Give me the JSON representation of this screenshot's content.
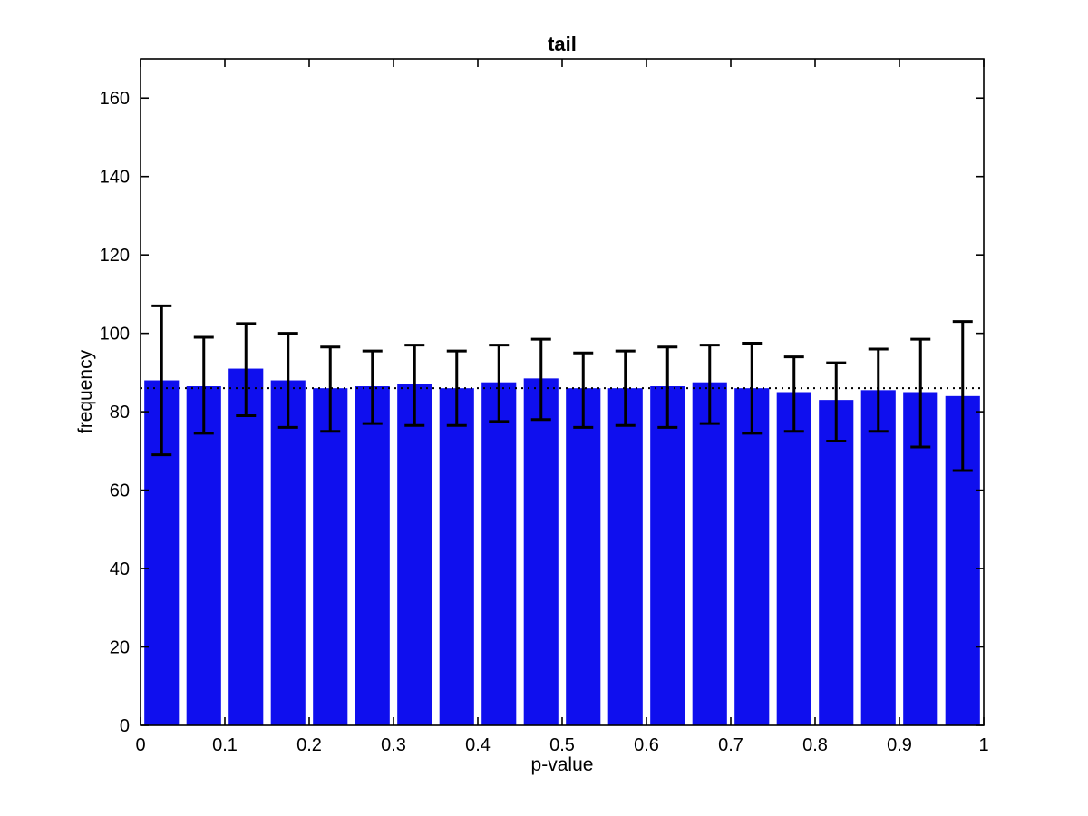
{
  "chart_data": {
    "type": "bar",
    "title": "tail",
    "xlabel": "p-value",
    "ylabel": "frequency",
    "xlim": [
      0,
      1
    ],
    "ylim": [
      0,
      170
    ],
    "x_ticks": [
      0,
      0.1,
      0.2,
      0.3,
      0.4,
      0.5,
      0.6,
      0.7,
      0.8,
      0.9,
      1
    ],
    "x_tick_labels": [
      "0",
      "0.1",
      "0.2",
      "0.3",
      "0.4",
      "0.5",
      "0.6",
      "0.7",
      "0.8",
      "0.9",
      "1"
    ],
    "y_ticks": [
      0,
      20,
      40,
      60,
      80,
      100,
      120,
      140,
      160
    ],
    "y_tick_labels": [
      "0",
      "20",
      "40",
      "60",
      "80",
      "100",
      "120",
      "140",
      "160"
    ],
    "bin_width": 0.05,
    "bin_centers": [
      0.025,
      0.075,
      0.125,
      0.175,
      0.225,
      0.275,
      0.325,
      0.375,
      0.425,
      0.475,
      0.525,
      0.575,
      0.625,
      0.675,
      0.725,
      0.775,
      0.825,
      0.875,
      0.925,
      0.975
    ],
    "values": [
      88,
      86.5,
      91,
      88,
      86,
      86.5,
      87,
      86,
      87.5,
      88.5,
      86,
      86,
      86.5,
      87.5,
      86,
      85,
      83,
      85.5,
      85,
      84
    ],
    "error_low": [
      69,
      74.5,
      79,
      76,
      75,
      77,
      76.5,
      76.5,
      77.5,
      78,
      76,
      76.5,
      76,
      77,
      74.5,
      75,
      72.5,
      75,
      71,
      65
    ],
    "error_high": [
      107,
      99,
      102.5,
      100,
      96.5,
      95.5,
      97,
      95.5,
      97,
      98.5,
      95,
      95.5,
      96.5,
      97,
      97.5,
      94,
      92.5,
      96,
      98.5,
      103
    ],
    "reference_line": 86,
    "legend": "none",
    "grid": false,
    "bar_color": "#0f0fee",
    "error_color": "#000000",
    "axis_color": "#000000",
    "background_color": "#ffffff"
  }
}
